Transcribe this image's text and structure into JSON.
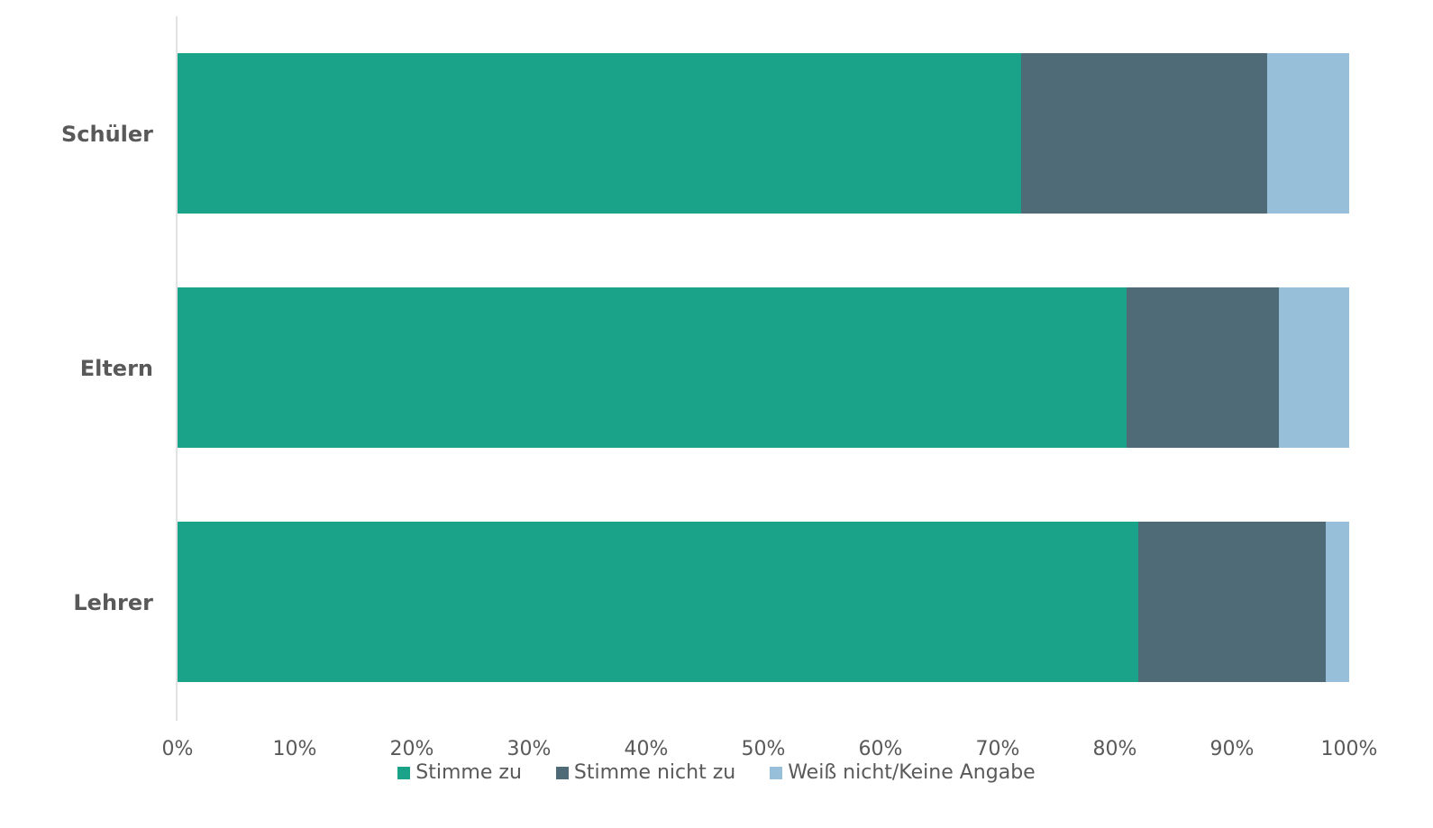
{
  "chart_data": {
    "type": "bar",
    "orientation": "horizontal",
    "stacked": true,
    "categories": [
      "Schüler",
      "Eltern",
      "Lehrer"
    ],
    "series": [
      {
        "name": "Stimme zu",
        "values": [
          72,
          81,
          82
        ],
        "color": "#1aa388"
      },
      {
        "name": "Stimme nicht zu",
        "values": [
          21,
          13,
          16
        ],
        "color": "#4f6b77"
      },
      {
        "name": "Weiß nicht/Keine Angabe",
        "values": [
          7,
          6,
          2
        ],
        "color": "#98bfd9"
      }
    ],
    "x_ticks": [
      "0%",
      "10%",
      "20%",
      "30%",
      "40%",
      "50%",
      "60%",
      "70%",
      "80%",
      "90%",
      "100%"
    ],
    "xlim": [
      0,
      100
    ],
    "legend_position": "bottom",
    "grid": false
  }
}
